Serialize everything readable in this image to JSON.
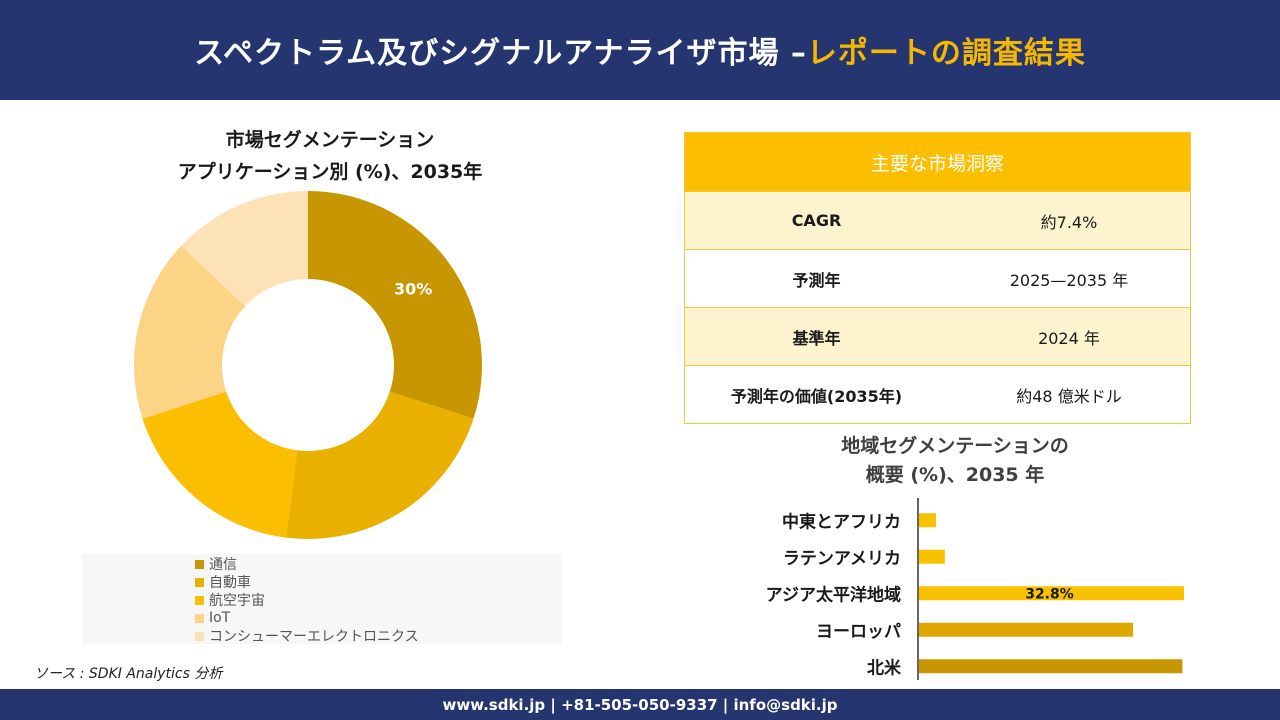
{
  "header": {
    "title_main": "スペクトラム及びシグナルアナライザ市場 –",
    "title_highlight": "レポートの調査結果"
  },
  "donut": {
    "title_line1": "市場セグメンテーション",
    "title_line2": "アプリケーション別 (%)、2035年"
  },
  "source": "ソース : SDKI Analytics 分析",
  "insights": {
    "title": "主要な市場洞察",
    "rows": [
      {
        "label": "CAGR",
        "value": "約7.4%"
      },
      {
        "label": "予測年",
        "value": "2025—2035 年"
      },
      {
        "label": "基準年",
        "value": "2024 年"
      },
      {
        "label": "予測年の価値(2035年)",
        "value": "約48 億米ドル"
      }
    ]
  },
  "region": {
    "title_line1": "地域セグメンテーションの",
    "title_line2": "概要 (%)、2035 年"
  },
  "footer": "www.sdki.jp | +81-505-050-9337 | info@sdki.jp",
  "chart_data": [
    {
      "type": "pie",
      "donut": true,
      "title": "市場セグメンテーション アプリケーション別 (%)、2035年",
      "categories": [
        "通信",
        "自動車",
        "航空宇宙",
        "IoT",
        "コンシューマーエレクトロニクス"
      ],
      "values": [
        30,
        22,
        18,
        17,
        13
      ],
      "colors": [
        "#c89600",
        "#e9b000",
        "#fbbe00",
        "#fdd485",
        "#fde2b8"
      ],
      "data_labels": [
        "30%",
        "",
        "",
        "",
        ""
      ],
      "legend_position": "bottom"
    },
    {
      "type": "bar",
      "orientation": "horizontal",
      "title": "地域セグメンテーションの 概要 (%)、2035 年",
      "categories": [
        "中東とアフリカ",
        "ラテンアメリカ",
        "アジア太平洋地域",
        "ヨーロッパ",
        "北米"
      ],
      "values": [
        2.1,
        3.2,
        32.8,
        26.5,
        32.6
      ],
      "colors": [
        "#f8c200",
        "#f8c200",
        "#f8c200",
        "#dfa600",
        "#c89600"
      ],
      "data_labels": [
        "",
        "",
        "32.8%",
        "",
        ""
      ],
      "grid": false
    }
  ]
}
